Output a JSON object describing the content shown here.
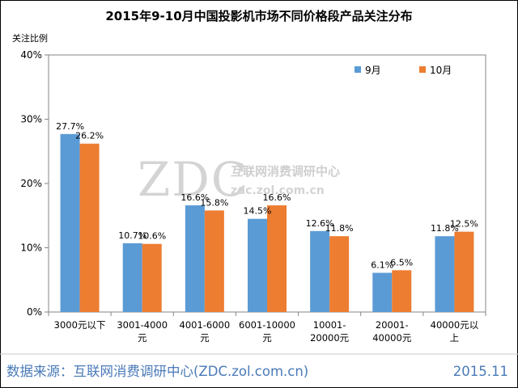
{
  "chart_data": {
    "type": "bar",
    "title": "2015年9-10月中国投影机市场不同价格段产品关注分布",
    "ylabel": "关注比例",
    "xlabel": "",
    "ylim": [
      0,
      40
    ],
    "yticks": [
      "0%",
      "10%",
      "20%",
      "30%",
      "40%"
    ],
    "ytick_values": [
      0,
      10,
      20,
      30,
      40
    ],
    "categories": [
      [
        "3000元以下"
      ],
      [
        "3001-4000",
        "元"
      ],
      [
        "4001-6000",
        "元"
      ],
      [
        "6001-10000",
        "元"
      ],
      [
        "10001-",
        "20000元"
      ],
      [
        "20001-",
        "40000元"
      ],
      [
        "40000元以",
        "上"
      ]
    ],
    "series": [
      {
        "name": "9月",
        "color": "#5b9bd5",
        "values": [
          27.7,
          10.7,
          16.6,
          14.5,
          12.6,
          6.1,
          11.8
        ],
        "labels": [
          "27.7%",
          "10.7%",
          "16.6%",
          "14.5%",
          "12.6%",
          "6.1%",
          "11.8%"
        ]
      },
      {
        "name": "10月",
        "color": "#ed7d31",
        "values": [
          26.2,
          10.6,
          15.8,
          16.6,
          11.8,
          6.5,
          12.5
        ],
        "labels": [
          "26.2%",
          "10.6%",
          "15.8%",
          "16.6%",
          "11.8%",
          "6.5%",
          "12.5%"
        ]
      }
    ],
    "legend_position": "top-right",
    "grid": false
  },
  "watermark": {
    "logo": "ZDC",
    "name": "互联网消费调研中心",
    "url": "zdc.zol.com.cn"
  },
  "footer": {
    "source": "数据来源：互联网消费调研中心(ZDC.zol.com.cn)",
    "date": "2015.11"
  }
}
